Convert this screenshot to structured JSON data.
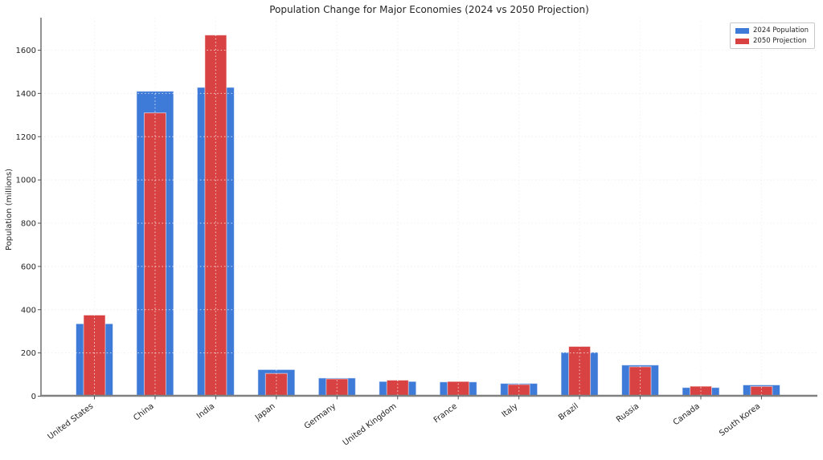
{
  "chart_data": {
    "type": "bar",
    "title": "Population Change for Major Economies (2024 vs 2050 Projection)",
    "xlabel": "",
    "ylabel": "Population (millions)",
    "categories": [
      "United States",
      "China",
      "India",
      "Japan",
      "Germany",
      "United Kingdom",
      "France",
      "Italy",
      "Brazil",
      "Russia",
      "Canada",
      "South Korea"
    ],
    "series": [
      {
        "name": "2024 Population",
        "color": "#3E7AD8",
        "edge_color": "rgba(255,255,255,0.55)",
        "values": [
          335,
          1410,
          1428,
          123,
          84,
          68,
          66,
          59,
          203,
          144,
          40,
          52
        ]
      },
      {
        "name": "2050 Projection",
        "color": "#D84242",
        "edge_color": "rgba(255,255,255,0.55)",
        "values": [
          375,
          1310,
          1670,
          105,
          80,
          74,
          68,
          54,
          230,
          136,
          46,
          45
        ]
      }
    ],
    "ylim": [
      0,
      1700
    ],
    "yticks": [
      0,
      200,
      400,
      600,
      800,
      1000,
      1200,
      1400,
      1600
    ],
    "grid": true,
    "grid_style": "dotted",
    "legend_position": "upper right",
    "bar_layout": "overlaid",
    "x_tick_rotation": 37
  }
}
